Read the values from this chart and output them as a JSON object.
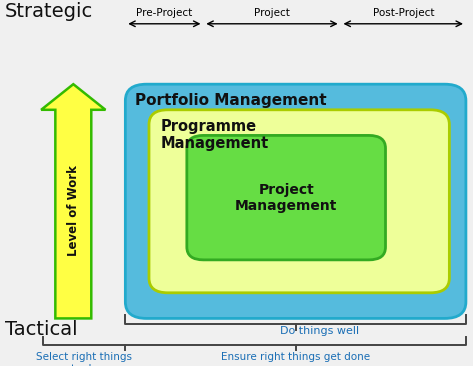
{
  "bg_color": "#f0f0f0",
  "title_strategic": "Strategic",
  "title_tactical": "Tactical",
  "label_level_of_work": "Level of Work",
  "box_portfolio_color": "#55bbdd",
  "box_portfolio_edge": "#22aacc",
  "box_programme_color": "#eeff99",
  "box_programme_edge": "#aacc00",
  "box_project_color": "#66dd44",
  "box_project_edge": "#33aa22",
  "text_portfolio": "Portfolio Management",
  "text_programme": "Programme\nManagement",
  "text_project": "Project\nManagement",
  "label_pre_project": "Pre-Project",
  "label_project": "Project",
  "label_post_project": "Post-Project",
  "label_do_things_well": "Do things well",
  "label_select": "Select right things\nto do",
  "label_ensure": "Ensure right things get done",
  "text_color_blue": "#1a6eb5",
  "text_color_black": "#111111",
  "arrow_yellow": "#ffff44",
  "arrow_edge": "#33bb00"
}
